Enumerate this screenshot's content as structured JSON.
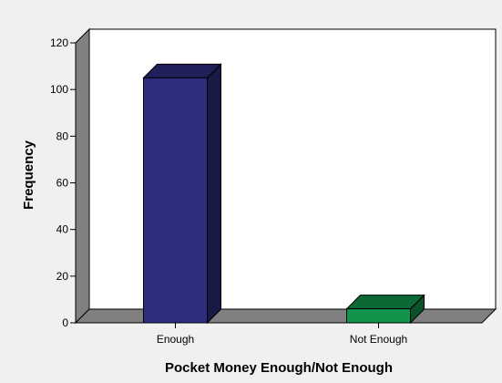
{
  "chart_data": {
    "type": "bar",
    "title": "",
    "categories": [
      "Enough",
      "Not Enough"
    ],
    "values": [
      105,
      6
    ],
    "xlabel": "Pocket Money Enough/Not Enough",
    "ylabel": "Frequency",
    "ylim": [
      0,
      120
    ],
    "yticks": [
      0,
      20,
      40,
      60,
      80,
      100,
      120
    ],
    "grid": false,
    "three_d": true,
    "colors": {
      "background": "#f0f0f0",
      "plot_back_wall": "#ffffff",
      "plot_side_wall": "#808080",
      "plot_floor": "#808080",
      "bars": [
        "#2d2e7f",
        "#11954c"
      ]
    }
  }
}
